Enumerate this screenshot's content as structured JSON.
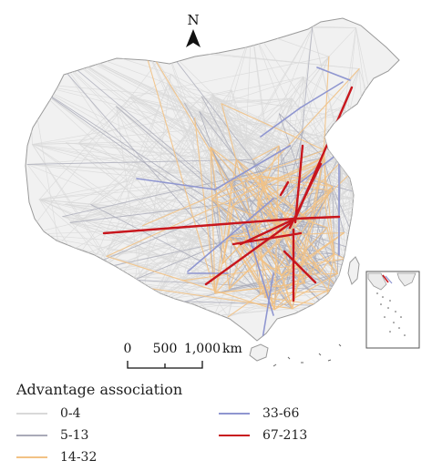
{
  "map": {
    "north_label": "N",
    "scale_bar": {
      "ticks": [
        "0",
        "500",
        "1,000"
      ],
      "unit": "km"
    }
  },
  "legend": {
    "title": "Advantage association",
    "items": [
      {
        "label": "0-4",
        "color": "#d9d9d9"
      },
      {
        "label": "5-13",
        "color": "#a9aab8"
      },
      {
        "label": "14-32",
        "color": "#f2c285"
      },
      {
        "label": "33-66",
        "color": "#8f96d0"
      },
      {
        "label": "67-213",
        "color": "#c8161d"
      }
    ]
  }
}
